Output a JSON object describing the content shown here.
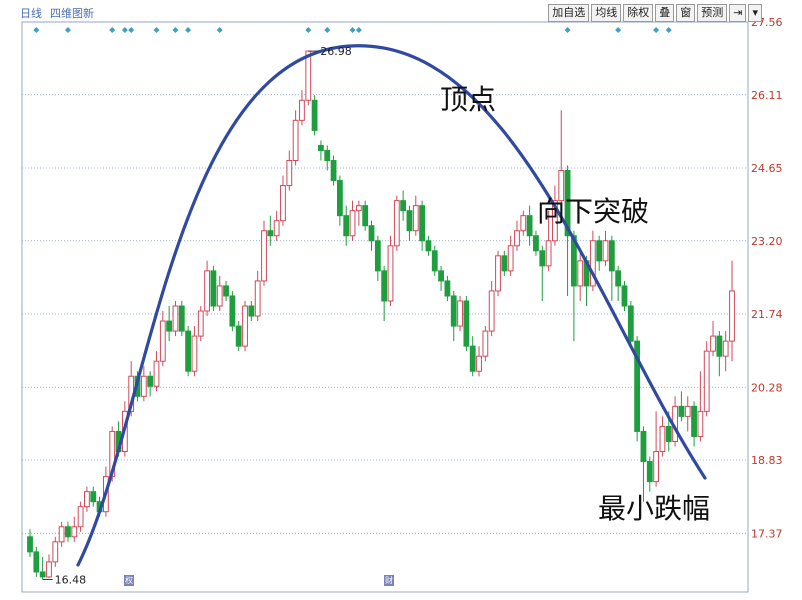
{
  "header": {
    "period_label": "日线",
    "mode_label": "四维图新"
  },
  "toolbar": {
    "buttons": [
      "加自选",
      "均线",
      "除权",
      "叠",
      "窗",
      "预测",
      "⇥",
      "▾"
    ]
  },
  "annotations": {
    "peak_label": "顶点",
    "breakdown_label": "向下突破",
    "min_drop_label": "最小跌幅"
  },
  "price_labels": {
    "high": "26.98",
    "low": "16.48"
  },
  "bottom_markers": [
    "权",
    "财"
  ],
  "colors": {
    "up": "#d04a5a",
    "down": "#1e9e3e",
    "trend_line": "#2f4aa0",
    "grid": "#7f9ccf",
    "axis_text": "#c0392b"
  },
  "chart_data": {
    "type": "candlestick",
    "title": "",
    "ylim": [
      16.2,
      27.56
    ],
    "yticks": [
      27.56,
      26.11,
      24.65,
      23.2,
      21.74,
      20.28,
      18.83,
      17.37
    ],
    "ytick_labels": [
      "27.56",
      "26.11",
      "24.65",
      "23.20",
      "21.74",
      "20.28",
      "18.83",
      "17.37"
    ],
    "candles": [
      [
        17.3,
        17.0,
        17.45,
        16.9
      ],
      [
        17.0,
        16.6,
        17.1,
        16.5
      ],
      [
        16.6,
        16.5,
        16.9,
        16.45
      ],
      [
        16.5,
        16.8,
        16.95,
        16.48
      ],
      [
        16.8,
        17.2,
        17.3,
        16.7
      ],
      [
        17.2,
        17.5,
        17.6,
        17.1
      ],
      [
        17.5,
        17.3,
        17.6,
        17.2
      ],
      [
        17.3,
        17.5,
        17.7,
        17.2
      ],
      [
        17.5,
        17.9,
        18.0,
        17.4
      ],
      [
        17.9,
        18.2,
        18.3,
        17.8
      ],
      [
        18.2,
        18.0,
        18.3,
        17.9
      ],
      [
        18.0,
        17.8,
        18.1,
        17.7
      ],
      [
        17.8,
        18.5,
        18.7,
        17.7
      ],
      [
        18.5,
        19.4,
        19.5,
        18.4
      ],
      [
        19.4,
        19.0,
        19.6,
        18.9
      ],
      [
        19.0,
        19.8,
        20.0,
        18.9
      ],
      [
        19.8,
        20.5,
        20.8,
        19.7
      ],
      [
        20.5,
        20.1,
        20.6,
        20.0
      ],
      [
        20.1,
        20.5,
        20.7,
        20.0
      ],
      [
        20.5,
        20.3,
        20.6,
        20.1
      ],
      [
        20.3,
        20.8,
        21.0,
        20.2
      ],
      [
        20.8,
        21.6,
        21.8,
        20.7
      ],
      [
        21.6,
        21.4,
        21.9,
        21.2
      ],
      [
        21.4,
        21.9,
        22.0,
        21.3
      ],
      [
        21.9,
        21.4,
        22.0,
        21.3
      ],
      [
        21.4,
        20.6,
        21.5,
        20.5
      ],
      [
        20.6,
        21.3,
        21.5,
        20.5
      ],
      [
        21.3,
        21.8,
        21.9,
        21.2
      ],
      [
        21.8,
        22.6,
        22.8,
        21.7
      ],
      [
        22.6,
        21.9,
        22.7,
        21.8
      ],
      [
        21.9,
        22.3,
        22.5,
        21.8
      ],
      [
        22.3,
        22.1,
        22.4,
        22.0
      ],
      [
        22.1,
        21.5,
        22.2,
        21.4
      ],
      [
        21.5,
        21.1,
        21.6,
        21.0
      ],
      [
        21.1,
        21.9,
        22.0,
        21.0
      ],
      [
        21.9,
        21.7,
        22.0,
        21.6
      ],
      [
        21.7,
        22.4,
        22.6,
        21.6
      ],
      [
        22.4,
        23.4,
        23.6,
        22.3
      ],
      [
        23.4,
        23.3,
        23.7,
        23.1
      ],
      [
        23.3,
        23.6,
        23.8,
        23.2
      ],
      [
        23.6,
        24.3,
        24.5,
        23.5
      ],
      [
        24.3,
        24.8,
        25.0,
        24.2
      ],
      [
        24.8,
        25.6,
        25.8,
        24.7
      ],
      [
        25.6,
        26.0,
        26.2,
        25.5
      ],
      [
        26.0,
        26.98,
        26.98,
        25.9
      ],
      [
        26.0,
        25.4,
        26.1,
        25.3
      ],
      [
        25.1,
        25.0,
        25.2,
        24.8
      ],
      [
        25.0,
        24.8,
        25.1,
        24.6
      ],
      [
        24.8,
        24.4,
        24.9,
        24.3
      ],
      [
        24.4,
        23.7,
        24.5,
        23.5
      ],
      [
        23.7,
        23.3,
        23.9,
        23.1
      ],
      [
        23.3,
        23.8,
        24.0,
        23.2
      ],
      [
        23.8,
        23.9,
        24.0,
        23.5
      ],
      [
        23.9,
        23.5,
        24.0,
        23.4
      ],
      [
        23.5,
        23.2,
        23.6,
        23.0
      ],
      [
        23.2,
        22.6,
        23.3,
        22.4
      ],
      [
        22.6,
        22.0,
        22.7,
        21.6
      ],
      [
        22.0,
        23.1,
        23.3,
        21.9
      ],
      [
        23.1,
        24.0,
        24.1,
        23.0
      ],
      [
        24.0,
        23.8,
        24.2,
        23.6
      ],
      [
        23.8,
        23.4,
        23.9,
        23.2
      ],
      [
        23.4,
        23.9,
        24.1,
        23.3
      ],
      [
        23.9,
        23.2,
        24.0,
        23.0
      ],
      [
        23.2,
        23.0,
        23.3,
        22.9
      ],
      [
        23.0,
        22.6,
        23.1,
        22.5
      ],
      [
        22.6,
        22.4,
        22.7,
        22.2
      ],
      [
        22.4,
        22.1,
        22.5,
        22.0
      ],
      [
        22.1,
        21.5,
        22.2,
        21.2
      ],
      [
        21.5,
        22.0,
        22.1,
        21.4
      ],
      [
        22.0,
        21.1,
        22.1,
        21.0
      ],
      [
        21.1,
        20.6,
        21.3,
        20.5
      ],
      [
        20.6,
        20.9,
        21.1,
        20.5
      ],
      [
        20.9,
        21.4,
        21.5,
        20.8
      ],
      [
        21.4,
        22.2,
        22.4,
        21.3
      ],
      [
        22.2,
        22.9,
        23.0,
        22.1
      ],
      [
        22.9,
        22.6,
        23.0,
        22.5
      ],
      [
        22.6,
        23.1,
        23.3,
        22.5
      ],
      [
        23.1,
        23.4,
        23.6,
        23.0
      ],
      [
        23.4,
        23.7,
        23.8,
        23.3
      ],
      [
        23.7,
        23.3,
        23.9,
        23.1
      ],
      [
        23.3,
        23.0,
        23.4,
        22.9
      ],
      [
        23.0,
        22.7,
        23.1,
        22.0
      ],
      [
        22.7,
        23.2,
        23.8,
        22.6
      ],
      [
        23.2,
        24.0,
        24.3,
        23.1
      ],
      [
        24.0,
        24.6,
        25.8,
        23.9
      ],
      [
        24.6,
        23.3,
        24.7,
        22.1
      ],
      [
        23.3,
        22.3,
        23.4,
        21.2
      ],
      [
        22.3,
        22.8,
        23.0,
        22.0
      ],
      [
        22.8,
        22.3,
        22.9,
        21.9
      ],
      [
        22.3,
        23.2,
        23.4,
        22.2
      ],
      [
        23.2,
        22.8,
        23.3,
        22.6
      ],
      [
        22.8,
        23.2,
        23.4,
        22.7
      ],
      [
        23.2,
        22.6,
        23.3,
        22.0
      ],
      [
        22.6,
        22.3,
        22.7,
        22.0
      ],
      [
        22.3,
        21.9,
        22.4,
        21.8
      ],
      [
        21.9,
        21.2,
        22.0,
        21.1
      ],
      [
        21.2,
        19.4,
        21.3,
        19.2
      ],
      [
        19.4,
        18.8,
        19.5,
        18.0
      ],
      [
        18.8,
        18.4,
        18.9,
        18.2
      ],
      [
        18.4,
        19.0,
        19.8,
        18.3
      ],
      [
        19.0,
        19.5,
        19.7,
        18.9
      ],
      [
        19.5,
        19.2,
        19.8,
        19.0
      ],
      [
        19.2,
        19.9,
        20.1,
        19.1
      ],
      [
        19.9,
        19.7,
        20.2,
        19.6
      ],
      [
        19.7,
        19.9,
        20.1,
        19.4
      ],
      [
        19.9,
        19.3,
        20.0,
        19.1
      ],
      [
        19.3,
        19.8,
        20.6,
        19.2
      ],
      [
        19.8,
        21.0,
        21.2,
        19.7
      ],
      [
        21.0,
        21.3,
        21.6,
        20.9
      ],
      [
        21.3,
        20.9,
        21.4,
        20.5
      ],
      [
        20.9,
        21.2,
        21.4,
        20.6
      ],
      [
        21.2,
        22.2,
        22.8,
        20.8
      ]
    ]
  }
}
